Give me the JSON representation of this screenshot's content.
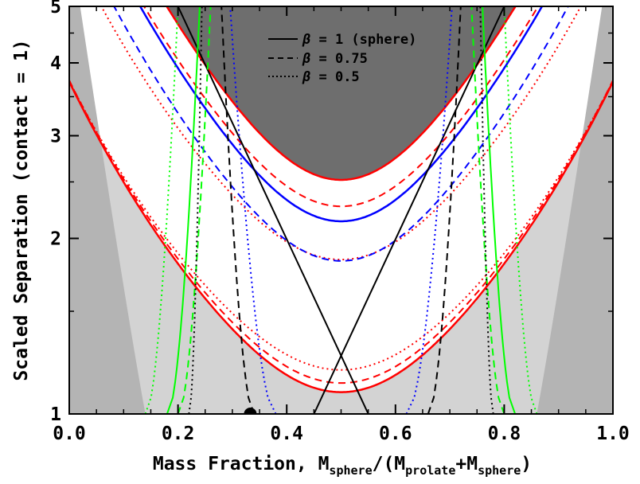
{
  "chart_data": {
    "type": "line",
    "xlabel": {
      "prefix": "Mass Fraction, M",
      "sub1": "sphere",
      "mid": "/(M",
      "sub2": "prolate",
      "plus": "+M",
      "sub3": "sphere",
      "suffix": ")"
    },
    "ylabel": "Scaled Separation (contact = 1)",
    "xlim": [
      0.0,
      1.0
    ],
    "ylim": [
      1,
      5
    ],
    "yscale": "log",
    "xticks": [
      "0.0",
      "0.2",
      "0.4",
      "0.6",
      "0.8",
      "1.0"
    ],
    "yticks": [
      {
        "value": 1,
        "label": "1"
      },
      {
        "value": 2,
        "label": "2"
      },
      {
        "value": 3,
        "label": "3"
      },
      {
        "value": 4,
        "label": "4"
      },
      {
        "value": 5,
        "label": "5"
      }
    ],
    "legend": {
      "placement": "top-center",
      "entries": [
        {
          "symbol": "β",
          "text": " = 1 (sphere)",
          "style": "solid"
        },
        {
          "symbol": "β",
          "text": " = 0.75",
          "style": "dashed"
        },
        {
          "symbol": "β",
          "text": " = 0.5",
          "style": "dotted"
        }
      ]
    },
    "colors": {
      "red": "#ff0000",
      "blue": "#0000ff",
      "green": "#00ff00",
      "black": "#000000",
      "dark_region": "#6e6e6e",
      "light_region": "#d3d3d3"
    },
    "marker": {
      "x": 0.333,
      "y": 1.0
    },
    "regions": [
      {
        "name": "dark-region-top",
        "fill": "#6e6e6e",
        "xmin": 0.13,
        "bottom_y": 2.52
      },
      {
        "name": "light-region-bottom",
        "fill": "#d3d3d3",
        "ymin_at_center": 1.09
      },
      {
        "name": "dark-region-left-corner",
        "fill": "#b4b4b4",
        "side": "left"
      },
      {
        "name": "dark-region-right-corner",
        "fill": "#b4b4b4",
        "side": "right"
      }
    ],
    "series": [
      {
        "color": "red",
        "style": "solid",
        "kind": "u",
        "min_y": 2.52
      },
      {
        "color": "red",
        "style": "dashed",
        "kind": "u",
        "min_y": 2.27
      },
      {
        "color": "red",
        "style": "dotted",
        "kind": "u",
        "min_y": 1.84
      },
      {
        "color": "blue",
        "style": "solid",
        "kind": "u",
        "min_y": 2.14
      },
      {
        "color": "blue",
        "style": "dashed",
        "kind": "u",
        "min_y": 1.83
      },
      {
        "color": "red",
        "style": "solid",
        "kind": "u",
        "min_y": 1.09
      },
      {
        "color": "red",
        "style": "dashed",
        "kind": "u",
        "min_y": 1.13
      },
      {
        "color": "red",
        "style": "dotted",
        "kind": "u",
        "min_y": 1.19
      },
      {
        "color": "black",
        "style": "solid",
        "kind": "x"
      },
      {
        "color": "black",
        "style": "dashed",
        "kind": "vertical"
      },
      {
        "color": "black",
        "style": "dotted",
        "kind": "vertical"
      },
      {
        "color": "green",
        "style": "solid",
        "kind": "vertical"
      },
      {
        "color": "green",
        "style": "dashed",
        "kind": "vertical"
      },
      {
        "color": "green",
        "style": "dotted",
        "kind": "vertical"
      },
      {
        "color": "blue",
        "style": "dotted",
        "kind": "vertical"
      }
    ]
  }
}
